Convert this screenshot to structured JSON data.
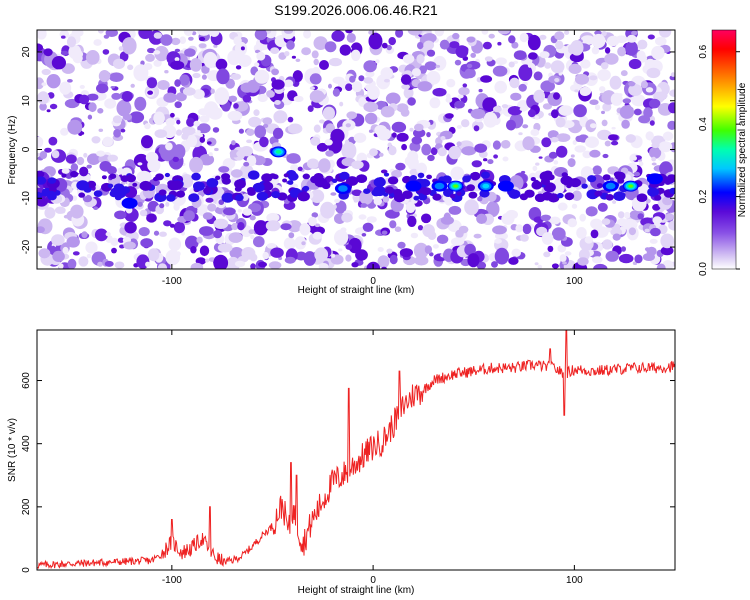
{
  "title": "S199.2026.006.06.46.R21",
  "chart_data": [
    {
      "type": "heatmap",
      "xlabel": "Height of straight line (km)",
      "ylabel": "Frequency (Hz)",
      "xlim": [
        -167,
        150
      ],
      "ylim": [
        -24.5,
        24.5
      ],
      "xticks": [
        -100,
        0,
        100
      ],
      "yticks": [
        -20,
        -10,
        0,
        10,
        20
      ],
      "colorbar": {
        "label": "Normalized spectral amplitude",
        "range": [
          0.0,
          0.66
        ],
        "ticks": [
          0.0,
          0.2,
          0.4,
          0.6
        ],
        "colors": [
          "#ffffff",
          "#d8c8f4",
          "#8a52e6",
          "#5a0ad8",
          "#0000ff",
          "#00c8ff",
          "#00ffb0",
          "#40ff00",
          "#ffff00",
          "#ff8000",
          "#ff0000",
          "#ff0060"
        ]
      },
      "hotspots": [
        {
          "x": -47,
          "y": -0.5,
          "value": 0.4
        },
        {
          "x": -121,
          "y": -11,
          "value": 0.22
        },
        {
          "x": -15,
          "y": -8,
          "value": 0.25
        },
        {
          "x": 20,
          "y": -7.5,
          "value": 0.22
        },
        {
          "x": 33,
          "y": -7.5,
          "value": 0.28
        },
        {
          "x": 41,
          "y": -7.5,
          "value": 0.5
        },
        {
          "x": 56,
          "y": -7.5,
          "value": 0.35
        },
        {
          "x": 66,
          "y": -7.5,
          "value": 0.22
        },
        {
          "x": 118,
          "y": -7.5,
          "value": 0.3
        },
        {
          "x": 128,
          "y": -7.5,
          "value": 0.55
        },
        {
          "x": 140,
          "y": -6,
          "value": 0.22
        }
      ]
    },
    {
      "type": "line",
      "xlabel": "Height of straight line (km)",
      "ylabel": "SNR (10 * v/v)",
      "xlim": [
        -167,
        150
      ],
      "ylim": [
        0,
        760
      ],
      "xticks": [
        -100,
        0,
        100
      ],
      "yticks": [
        0,
        200,
        400,
        600
      ],
      "color": "#ee2222",
      "series": [
        {
          "x": [
            -167,
            -150,
            -130,
            -110,
            -105,
            -100,
            -95,
            -90,
            -85,
            -80,
            -75,
            -70,
            -65,
            -60,
            -55,
            -50,
            -45,
            -42,
            -40,
            -37,
            -35,
            -30,
            -25,
            -20,
            -15,
            -10,
            -5,
            0,
            5,
            10,
            15,
            20,
            25,
            30,
            40,
            50,
            60,
            70,
            80,
            90,
            95,
            100,
            110,
            120,
            130,
            140,
            150
          ],
          "y": [
            15,
            20,
            25,
            30,
            50,
            90,
            55,
            70,
            100,
            50,
            25,
            30,
            45,
            75,
            110,
            140,
            210,
            120,
            190,
            130,
            80,
            160,
            220,
            280,
            300,
            330,
            360,
            390,
            410,
            460,
            520,
            555,
            570,
            600,
            620,
            630,
            640,
            640,
            650,
            640,
            620,
            635,
            630,
            635,
            640,
            640,
            645
          ]
        }
      ],
      "spikes": [
        {
          "x": -100,
          "y": 160
        },
        {
          "x": -81,
          "y": 200
        },
        {
          "x": -41,
          "y": 340
        },
        {
          "x": -38,
          "y": 300
        },
        {
          "x": -12,
          "y": 575
        },
        {
          "x": 13,
          "y": 630
        },
        {
          "x": 88,
          "y": 700
        },
        {
          "x": 96,
          "y": 760
        },
        {
          "x": 95,
          "y": 490
        }
      ]
    }
  ]
}
